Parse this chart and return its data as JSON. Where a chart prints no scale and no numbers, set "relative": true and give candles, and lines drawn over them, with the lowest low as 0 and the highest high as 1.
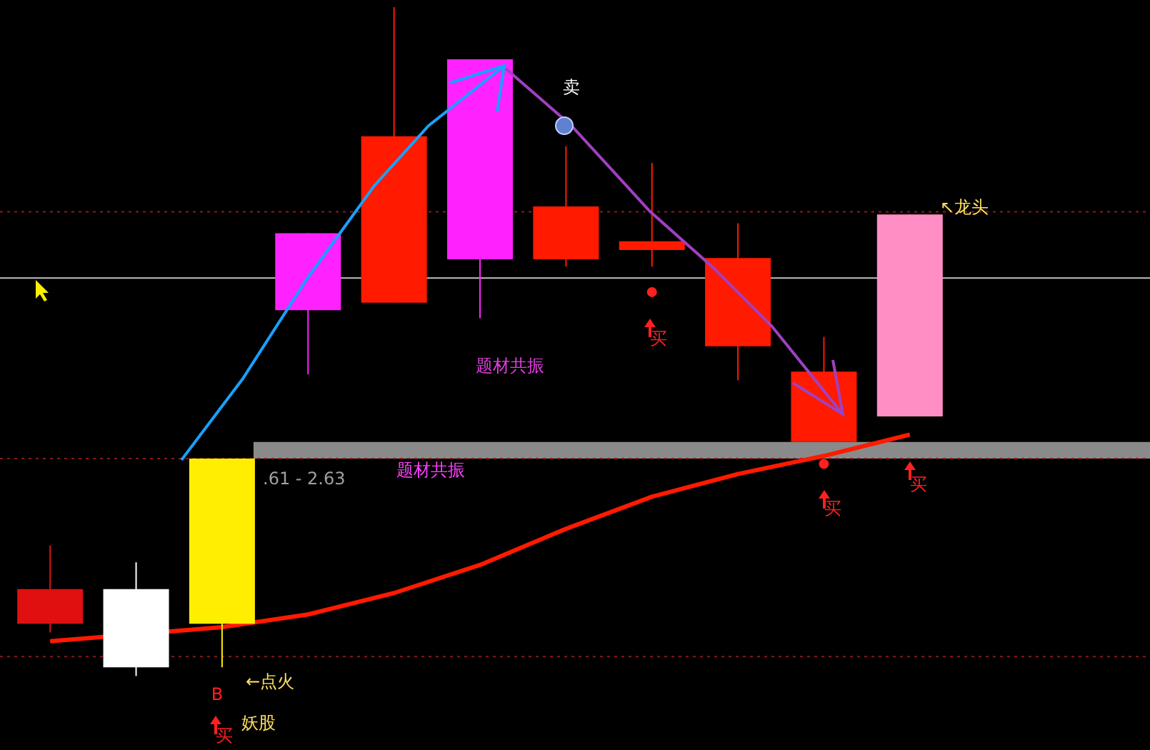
{
  "chart_data": {
    "type": "candlestick",
    "relative": true,
    "categories": [
      null,
      null,
      null,
      null,
      null,
      null,
      null,
      null,
      null,
      null,
      null
    ],
    "ohlc": [
      [
        0.13,
        0.195,
        0.065,
        0.078
      ],
      [
        0.13,
        0.17,
        0,
        0.013
      ],
      [
        0.078,
        0.325,
        0.013,
        0.325
      ],
      [
        0.547,
        0.662,
        0.451,
        0.662
      ],
      [
        0.807,
        1,
        0.558,
        0.558
      ],
      [
        0.623,
        0.922,
        0.535,
        0.922
      ],
      [
        0.702,
        0.792,
        0.612,
        0.623
      ],
      [
        0.65,
        0.767,
        0.612,
        0.637
      ],
      [
        0.625,
        0.677,
        0.442,
        0.493
      ],
      [
        0.455,
        0.507,
        0.35,
        0.35
      ],
      [
        0.388,
        0.69,
        0.388,
        0.69
      ]
    ],
    "colors": [
      "#e01010",
      "#ffffff",
      "#ffee00",
      "#ff22ff",
      "#ff1a00",
      "#ff22ff",
      "#ff1a00",
      "#ff1a00",
      "#ff1a00",
      "#ff1a00",
      "#ff8ec4"
    ],
    "series": [
      {
        "type": "line",
        "color": "#ff1a00",
        "values": [
          0.052,
          null,
          0.073,
          0.092,
          0.124,
          0.166,
          0.22,
          0.268,
          0.302,
          0.329,
          0.361
        ]
      },
      {
        "type": "scatter",
        "color": "#ff2020",
        "marker": "circle",
        "values": [
          null,
          null,
          null,
          null,
          null,
          null,
          null,
          0.574,
          null,
          0.317,
          null
        ]
      }
    ],
    "ref_lines": [
      {
        "axis": "y",
        "value": 0.694,
        "color": "#8b1a1a",
        "line_style": "dotted"
      },
      {
        "axis": "y",
        "value": 0.325,
        "color": "#8b1a1a",
        "line_style": "dotted"
      },
      {
        "axis": "y",
        "value": 0.029,
        "color": "#8b1a1a",
        "line_style": "dotted"
      },
      {
        "axis": "y",
        "value": 0.595,
        "color": "#c0c0c0",
        "line_style": "solid"
      }
    ],
    "bands": [
      {
        "axis": "y",
        "from": 0.325,
        "to": 0.35,
        "label": "题材共振",
        "color": "#8a8a8a"
      }
    ],
    "annotations": [
      "卖",
      "题材共振",
      ".61 - 2.63",
      "↖龙头",
      "←点火",
      "B",
      "妖股",
      "买",
      "买",
      "买",
      "买"
    ]
  }
}
